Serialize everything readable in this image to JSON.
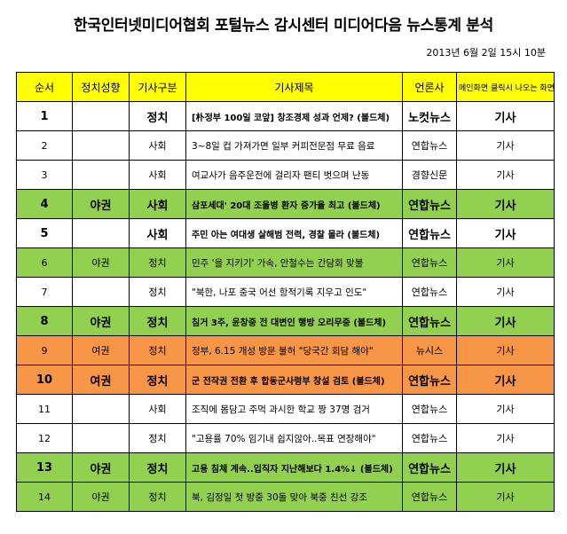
{
  "title": "한국인터넷미디어협회 포털뉴스 감시센터 미디어다음 뉴스통계 분석",
  "timestamp": "2013년 6월  2일 15시 10분",
  "headers": {
    "num": "순서",
    "politics": "정치성향",
    "category": "기사구분",
    "article_title": "기사제목",
    "press": "언론사",
    "main_click": "메인화면 클릭시 나오는 화면"
  },
  "rows": [
    {
      "num": "1",
      "politics": "",
      "category": "정치",
      "title": "[朴정부 100일 코앞] 창조경제 성과 언제? (볼드체)",
      "press": "노컷뉴스",
      "view": "기사",
      "style": "bold-white"
    },
    {
      "num": "2",
      "politics": "",
      "category": "사회",
      "title": "3~8일 컵 가져가면 일부 커피전문점 무료 음료",
      "press": "연합뉴스",
      "view": "기사",
      "style": "white"
    },
    {
      "num": "3",
      "politics": "",
      "category": "사회",
      "title": "여교사가 음주운전에 걸리자 팬티 벗으며 난동",
      "press": "경향신문",
      "view": "기사",
      "style": "white"
    },
    {
      "num": "4",
      "politics": "야권",
      "category": "사회",
      "title": "삼포세대' 20대 조울병 환자 증가율 최고 (볼드체)",
      "press": "연합뉴스",
      "view": "기사",
      "style": "bold-green"
    },
    {
      "num": "5",
      "politics": "",
      "category": "사회",
      "title": "주민 아는 여대생 살해범 전력, 경찰 몰라 (볼드체)",
      "press": "연합뉴스",
      "view": "기사",
      "style": "bold-white"
    },
    {
      "num": "6",
      "politics": "야권",
      "category": "정치",
      "title": "민주 '을 지키기' 가속, 안철수는 간담회 맞불",
      "press": "연합뉴스",
      "view": "기사",
      "style": "green"
    },
    {
      "num": "7",
      "politics": "",
      "category": "정치",
      "title": "\"북한, 나포 중국 어선 항적기록 지우고 인도\"",
      "press": "연합뉴스",
      "view": "기사",
      "style": "white"
    },
    {
      "num": "8",
      "politics": "야권",
      "category": "정치",
      "title": "침거 3주, 윤창중 전 대변인 행방 오리무중 (볼드체)",
      "press": "연합뉴스",
      "view": "기사",
      "style": "bold-green"
    },
    {
      "num": "9",
      "politics": "여권",
      "category": "정치",
      "title": "정부, 6.15 개성 방문 불허 \"당국간 회담 해야\"",
      "press": "뉴시스",
      "view": "기사",
      "style": "orange"
    },
    {
      "num": "10",
      "politics": "여권",
      "category": "정치",
      "title": "군 전작권 전환 후 합동군사령부 창설 검토 (볼드체)",
      "press": "연합뉴스",
      "view": "기사",
      "style": "bold-orange"
    },
    {
      "num": "11",
      "politics": "",
      "category": "사회",
      "title": "조직에 몸담고 주먹 과시한 학교 짱 37명 검거",
      "press": "연합뉴스",
      "view": "기사",
      "style": "white"
    },
    {
      "num": "12",
      "politics": "",
      "category": "정치",
      "title": "\"고용률 70% 임기내 쉽지않아..목표 연장해야\"",
      "press": "연합뉴스",
      "view": "기사",
      "style": "white"
    },
    {
      "num": "13",
      "politics": "야권",
      "category": "정치",
      "title": "고용 침체 계속..입직자 지난해보다 1.4%↓ (볼드체)",
      "press": "연합뉴스",
      "view": "기사",
      "style": "bold-green"
    },
    {
      "num": "14",
      "politics": "야권",
      "category": "정치",
      "title": "북, 김정일 첫 방중 30돌 맞아 북중 친선 강조",
      "press": "연합뉴스",
      "view": "기사",
      "style": "green"
    }
  ],
  "colors": {
    "header": "#ffff00",
    "green": "#92d050",
    "orange": "#f79646"
  }
}
